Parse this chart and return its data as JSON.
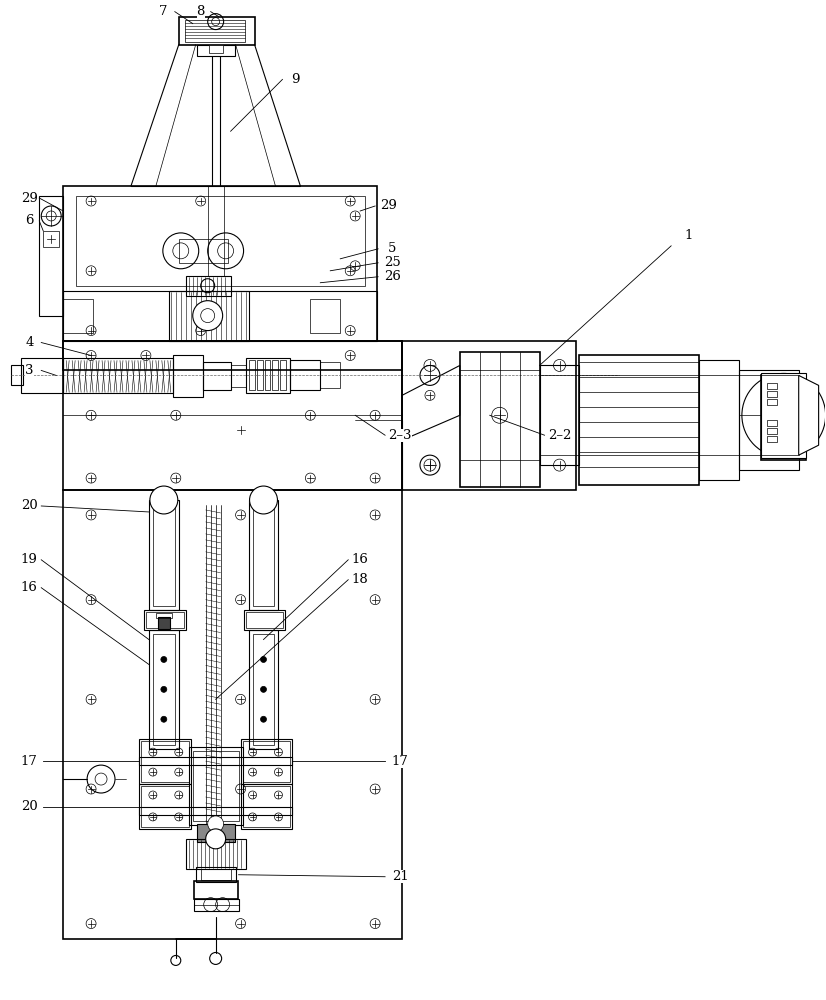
{
  "bg_color": "#ffffff",
  "lc": "#000000",
  "figsize": [
    8.26,
    10.0
  ],
  "dpi": 100,
  "lw_thin": 0.5,
  "lw_med": 0.8,
  "lw_thick": 1.2
}
